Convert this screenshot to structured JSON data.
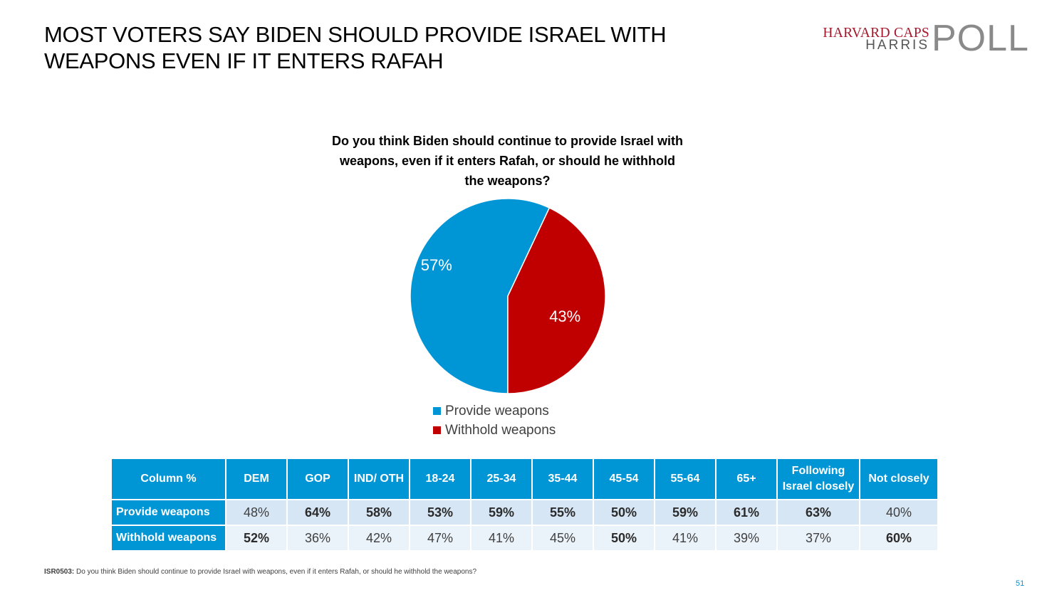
{
  "slide": {
    "title_line1": "MOST VOTERS SAY BIDEN SHOULD PROVIDE ISRAEL WITH",
    "title_line2": "WEAPONS EVEN IF IT ENTERS RAFAH"
  },
  "logo": {
    "line1": "HARVARD CAPS",
    "line2": "HARRIS",
    "word": "POLL"
  },
  "question": {
    "line1": "Do you think Biden should continue to provide Israel with",
    "line2": "weapons, even if it enters Rafah, or should he withhold",
    "line3": "the weapons?"
  },
  "chart_data": {
    "type": "pie",
    "categories": [
      "Provide weapons",
      "Withhold weapons"
    ],
    "values": [
      57,
      43
    ],
    "labels": [
      "57%",
      "43%"
    ],
    "colors": [
      "#0096d6",
      "#c00000"
    ],
    "legend_position": "bottom"
  },
  "table": {
    "header": [
      "Column %",
      "DEM",
      "GOP",
      "IND/ OTH",
      "18-24",
      "25-34",
      "35-44",
      "45-54",
      "55-64",
      "65+",
      "Following Israel closely",
      "Not closely"
    ],
    "rows": [
      {
        "label": "Provide weapons",
        "cells": [
          "48%",
          "64%",
          "58%",
          "53%",
          "59%",
          "55%",
          "50%",
          "59%",
          "61%",
          "63%",
          "40%"
        ],
        "bold": [
          false,
          true,
          true,
          true,
          true,
          true,
          true,
          true,
          true,
          true,
          false
        ]
      },
      {
        "label": "Withhold weapons",
        "cells": [
          "52%",
          "36%",
          "42%",
          "47%",
          "41%",
          "45%",
          "50%",
          "41%",
          "39%",
          "37%",
          "60%"
        ],
        "bold": [
          true,
          false,
          false,
          false,
          false,
          false,
          true,
          false,
          false,
          false,
          true
        ]
      }
    ]
  },
  "footnote": {
    "code": "ISR0503:",
    "text": " Do you think Biden should continue to provide Israel with weapons, even if it enters Rafah, or should he withhold the weapons?"
  },
  "page_number": "51"
}
